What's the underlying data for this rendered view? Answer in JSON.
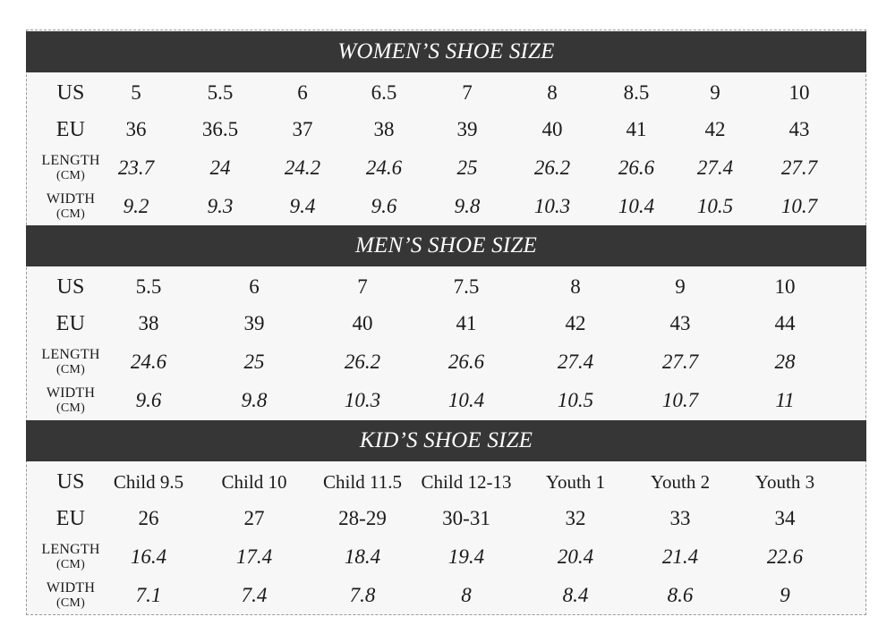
{
  "labels": {
    "us": "US",
    "eu": "EU",
    "length_1": "LENGTH",
    "length_2": "(CM)",
    "width_1": "WIDTH",
    "width_2": "(CM)"
  },
  "women": {
    "title": "WOMEN’S SHOE SIZE",
    "us": [
      "5",
      "5.5",
      "6",
      "6.5",
      "7",
      "8",
      "8.5",
      "9",
      "10"
    ],
    "eu": [
      "36",
      "36.5",
      "37",
      "38",
      "39",
      "40",
      "41",
      "42",
      "43"
    ],
    "length": [
      "23.7",
      "24",
      "24.2",
      "24.6",
      "25",
      "26.2",
      "26.6",
      "27.4",
      "27.7"
    ],
    "width": [
      "9.2",
      "9.3",
      "9.4",
      "9.6",
      "9.8",
      "10.3",
      "10.4",
      "10.5",
      "10.7"
    ]
  },
  "men": {
    "title": "MEN’S SHOE SIZE",
    "us": [
      "5.5",
      "6",
      "7",
      "7.5",
      "8",
      "9",
      "10"
    ],
    "eu": [
      "38",
      "39",
      "40",
      "41",
      "42",
      "43",
      "44"
    ],
    "length": [
      "24.6",
      "25",
      "26.2",
      "26.6",
      "27.4",
      "27.7",
      "28"
    ],
    "width": [
      "9.6",
      "9.8",
      "10.3",
      "10.4",
      "10.5",
      "10.7",
      "11"
    ]
  },
  "kids": {
    "title": "KID’S SHOE SIZE",
    "us": [
      "Child 9.5",
      "Child 10",
      "Child 11.5",
      "Child 12-13",
      "Youth 1",
      "Youth 2",
      "Youth 3"
    ],
    "eu": [
      "26",
      "27",
      "28-29",
      "30-31",
      "32",
      "33",
      "34"
    ],
    "length": [
      "16.4",
      "17.4",
      "18.4",
      "19.4",
      "20.4",
      "21.4",
      "22.6"
    ],
    "width": [
      "7.1",
      "7.4",
      "7.8",
      "8",
      "8.4",
      "8.6",
      "9"
    ]
  }
}
